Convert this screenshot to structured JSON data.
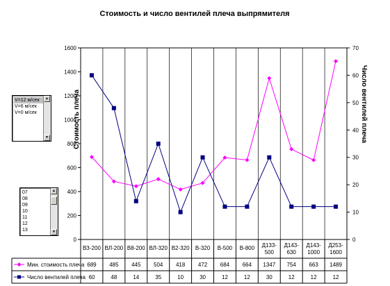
{
  "chart_data": {
    "type": "line",
    "title": "Стоимость и число вентилей плеча выпрямителя",
    "ylabel_left": "Стоимость плеча",
    "ylabel_right": "Число вентилей плеча",
    "ylim_left": [
      0,
      1600
    ],
    "ylim_right": [
      0,
      70
    ],
    "yticks_left": [
      "0",
      "200",
      "400",
      "600",
      "800",
      "1000",
      "1200",
      "1400",
      "1600"
    ],
    "yticks_right": [
      "0",
      "10",
      "20",
      "30",
      "40",
      "50",
      "60",
      "70"
    ],
    "categories": [
      [
        "ВЗ-200"
      ],
      [
        "ВЛ-200"
      ],
      [
        "В8-200"
      ],
      [
        "ВЛ-320"
      ],
      [
        "В2-320"
      ],
      [
        "В-320"
      ],
      [
        "В-500"
      ],
      [
        "В-800"
      ],
      [
        "Д133-",
        "500"
      ],
      [
        "Д143-",
        "630"
      ],
      [
        "Д143-",
        "1000"
      ],
      [
        "Д253-",
        "1600"
      ]
    ],
    "series": [
      {
        "name": "Мин. стоимость плеча",
        "axis": "left",
        "color": "#ff00ff",
        "marker": "diamond",
        "values": [
          689,
          485,
          445,
          504,
          418,
          472,
          684,
          664,
          1347,
          754,
          663,
          1489
        ],
        "labels": [
          "689",
          "485",
          "445",
          "504",
          "418",
          "472",
          "684",
          "664",
          "1347",
          "754",
          "663",
          "1489"
        ]
      },
      {
        "name": "Число вентилей плеча",
        "axis": "right",
        "color": "#000080",
        "marker": "square",
        "values": [
          60,
          48,
          14,
          35,
          10,
          30,
          12,
          12,
          30,
          12,
          12,
          12
        ],
        "labels": [
          "60",
          "48",
          "14",
          "35",
          "10",
          "30",
          "12",
          "12",
          "30",
          "12",
          "12",
          "12"
        ]
      }
    ],
    "grid": "vertical",
    "legend": "data-table"
  },
  "controls": {
    "speed_list": {
      "items": [
        "V=12 м/сек",
        "V=6 м/сек",
        "V=0 м/сек"
      ],
      "selected": 0
    },
    "number_list": {
      "items": [
        "07",
        "08",
        "09",
        "10",
        "11",
        "12",
        "13"
      ]
    }
  }
}
